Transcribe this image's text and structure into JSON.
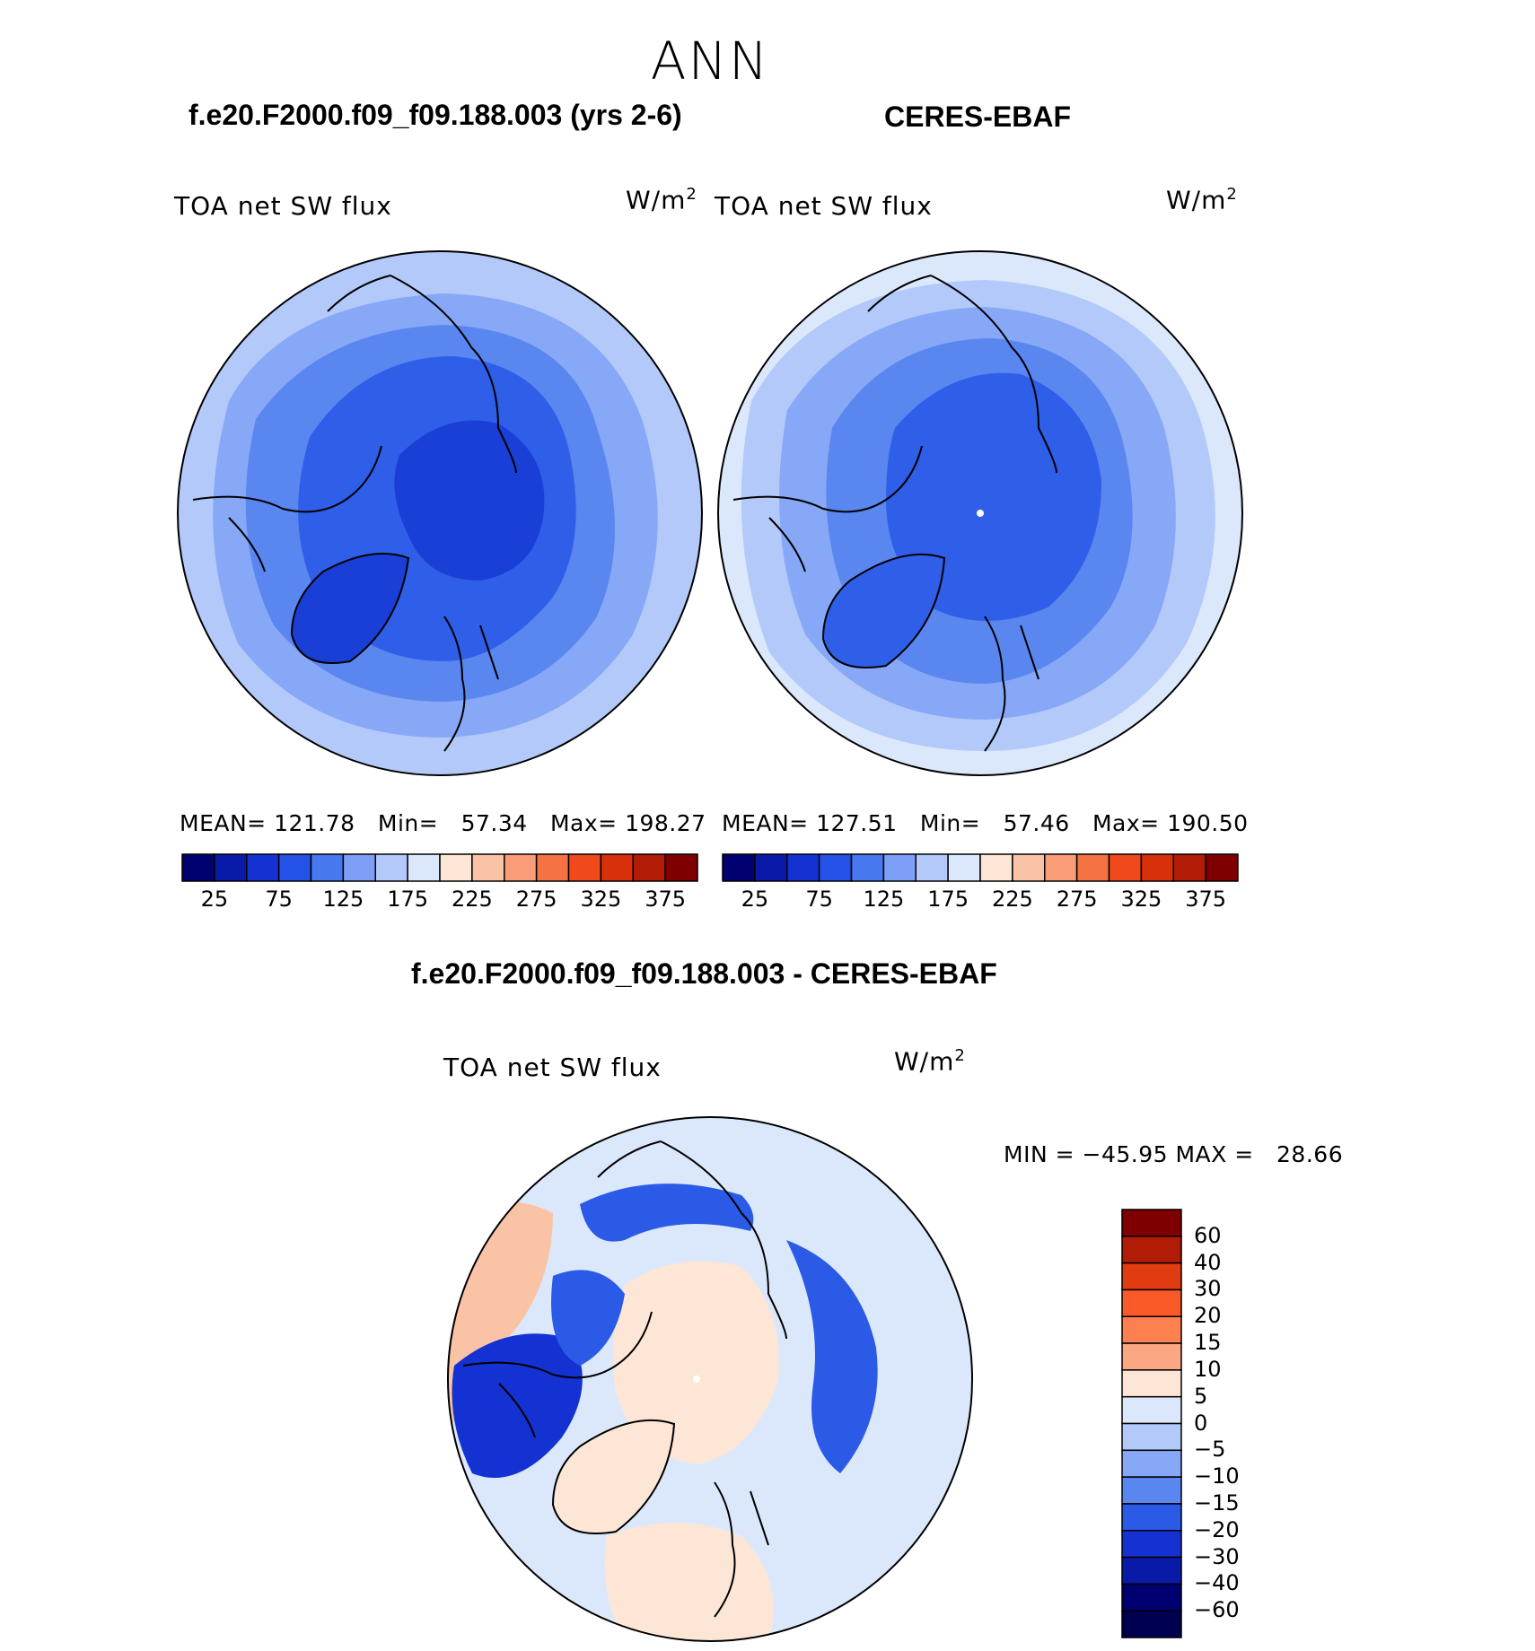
{
  "main_title": "ANN",
  "panels": [
    {
      "case_title": "f.e20.F2000.f09_f09.188.003 (yrs 2-6)",
      "variable": "TOA net SW flux",
      "units": "W/m",
      "units_exp": "2",
      "mean_label": "MEAN=",
      "mean": "121.78",
      "min_label": "Min=",
      "min": "57.34",
      "max_label": "Max=",
      "max": "198.27"
    },
    {
      "case_title": "CERES-EBAF",
      "variable": "TOA net SW flux",
      "units": "W/m",
      "units_exp": "2",
      "mean_label": "MEAN=",
      "mean": "127.51",
      "min_label": "Min=",
      "min": "57.46",
      "max_label": "Max=",
      "max": "190.50"
    }
  ],
  "shared_colorbar": {
    "ticks": [
      "25",
      "75",
      "125",
      "175",
      "225",
      "275",
      "325",
      "375"
    ],
    "colors": [
      "#000070",
      "#0a1aa8",
      "#1432d2",
      "#2452e6",
      "#4878f0",
      "#7da0f6",
      "#b3c9fa",
      "#dbe8fc",
      "#fde6d6",
      "#fbc3a6",
      "#f99c78",
      "#f57342",
      "#f04a1c",
      "#d8300a",
      "#b01c06",
      "#7e0000"
    ]
  },
  "diff_panel": {
    "case_title": "f.e20.F2000.f09_f09.188.003 - CERES-EBAF",
    "variable": "TOA net SW flux",
    "units": "W/m",
    "units_exp": "2",
    "min_label": "MIN =",
    "min": "−45.95",
    "max_label": "MAX =",
    "max": "28.66",
    "colorbar": {
      "labels": [
        "60",
        "40",
        "30",
        "20",
        "15",
        "10",
        "5",
        "0",
        "−5",
        "−10",
        "−15",
        "−20",
        "−30",
        "−40",
        "−60"
      ],
      "colors": [
        "#7e0000",
        "#b01c06",
        "#e03c10",
        "#fa5a28",
        "#fc8050",
        "#fca784",
        "#fde6d6",
        "#dbe8fc",
        "#b3c9fa",
        "#86a8f6",
        "#5a86f0",
        "#2a5ae6",
        "#1432d2",
        "#0a1aa8",
        "#000070",
        "#000050"
      ]
    }
  },
  "map_colors": {
    "deep": "#1a3fd6",
    "mid": "#2f5fe8",
    "light": "#5a86f0",
    "pale": "#86a8f6",
    "paler": "#b3c9fa",
    "palest": "#dbe8fc",
    "warm1": "#fde6d6",
    "warm2": "#fbc3a6",
    "warm3": "#f99c78",
    "cool_deep": "#0a1aa8"
  }
}
